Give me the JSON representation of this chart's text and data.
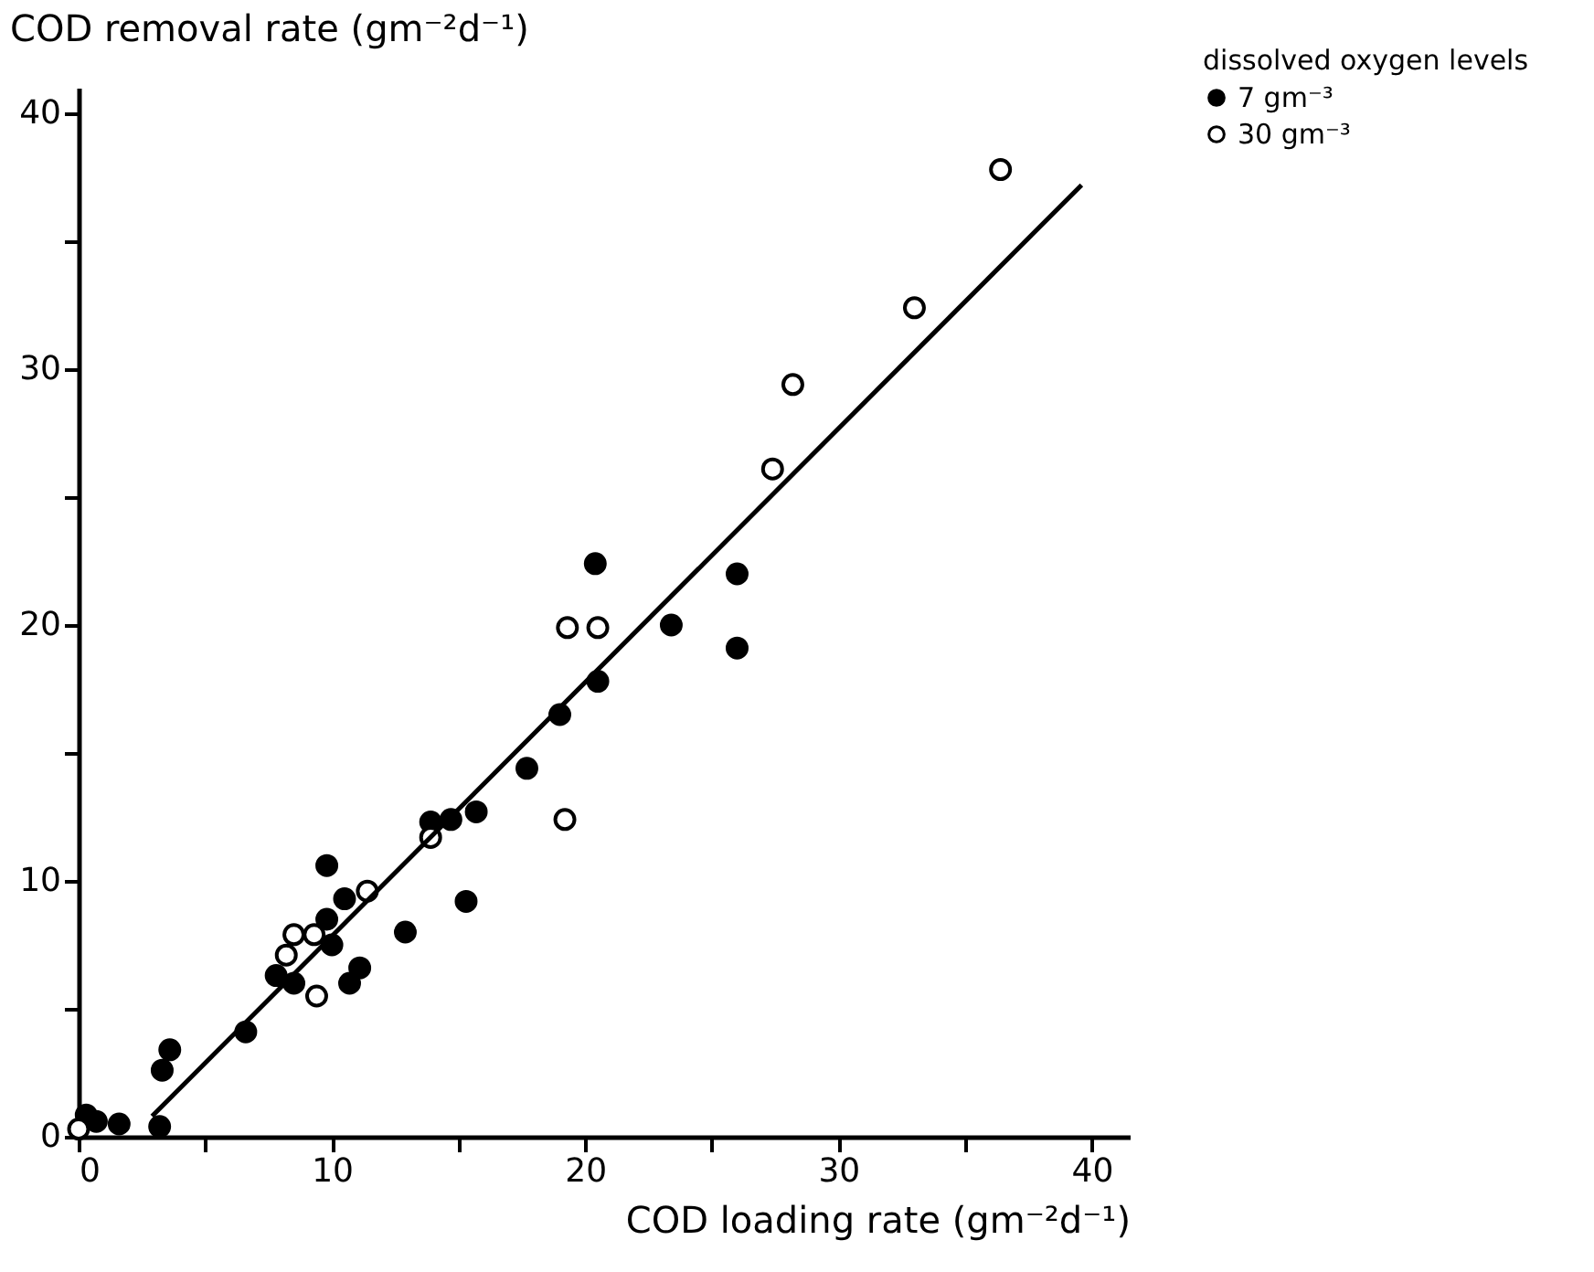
{
  "chart_data": {
    "type": "scatter",
    "xlabel": "COD loading rate (gm⁻²d⁻¹)",
    "ylabel": "COD removal rate (gm⁻²d⁻¹)",
    "legend_title": "dissolved oxygen levels",
    "legend": "top right",
    "grid": false,
    "xlim": [
      0,
      41.5
    ],
    "ylim": [
      0,
      41
    ],
    "xticks": [
      0,
      {
        "value": 5,
        "label": null
      },
      10,
      {
        "value": 15,
        "label": null
      },
      20,
      {
        "value": 25,
        "label": null
      },
      30,
      {
        "value": 35,
        "label": null
      },
      40
    ],
    "yticks": [
      0,
      {
        "value": 5,
        "label": null
      },
      10,
      {
        "value": 15,
        "label": null
      },
      20,
      {
        "value": 25,
        "label": null
      },
      30,
      {
        "value": 35,
        "label": null
      },
      40
    ],
    "series": [
      {
        "name": "7 gm⁻³",
        "color": "#000000",
        "marker": "circle",
        "x": [
          0.3,
          0.7,
          1.6,
          3.2,
          3.3,
          3.6,
          6.6,
          7.8,
          8.5,
          9.8,
          9.8,
          10.0,
          10.5,
          10.7,
          11.1,
          12.9,
          13.9,
          14.7,
          15.7,
          15.3,
          17.7,
          19.0,
          20.5,
          23.4,
          26.0,
          20.4,
          26.0
        ],
        "values": [
          0.85,
          0.6,
          0.5,
          0.4,
          2.6,
          3.4,
          4.1,
          6.3,
          6.0,
          8.5,
          10.6,
          7.5,
          9.3,
          6.0,
          6.6,
          8.0,
          12.3,
          12.4,
          12.7,
          9.2,
          14.4,
          16.5,
          17.8,
          20.0,
          19.1,
          22.4,
          22.0
        ]
      },
      {
        "name": "30 gm⁻³",
        "color": "#ffffff",
        "marker": "circle",
        "x": [
          0.0,
          8.2,
          8.5,
          9.3,
          9.4,
          11.4,
          13.9,
          19.2,
          19.3,
          20.5,
          27.4,
          28.2,
          33.0,
          36.4
        ],
        "values": [
          0.3,
          7.1,
          7.9,
          7.9,
          5.5,
          9.6,
          11.7,
          12.4,
          19.9,
          19.9,
          26.1,
          29.4,
          32.4,
          37.8
        ]
      },
      {
        "type": "line",
        "color": "#000000",
        "marker": "none",
        "x": [
          2.9,
          39.6
        ],
        "values": [
          0.8,
          37.2
        ]
      }
    ]
  }
}
